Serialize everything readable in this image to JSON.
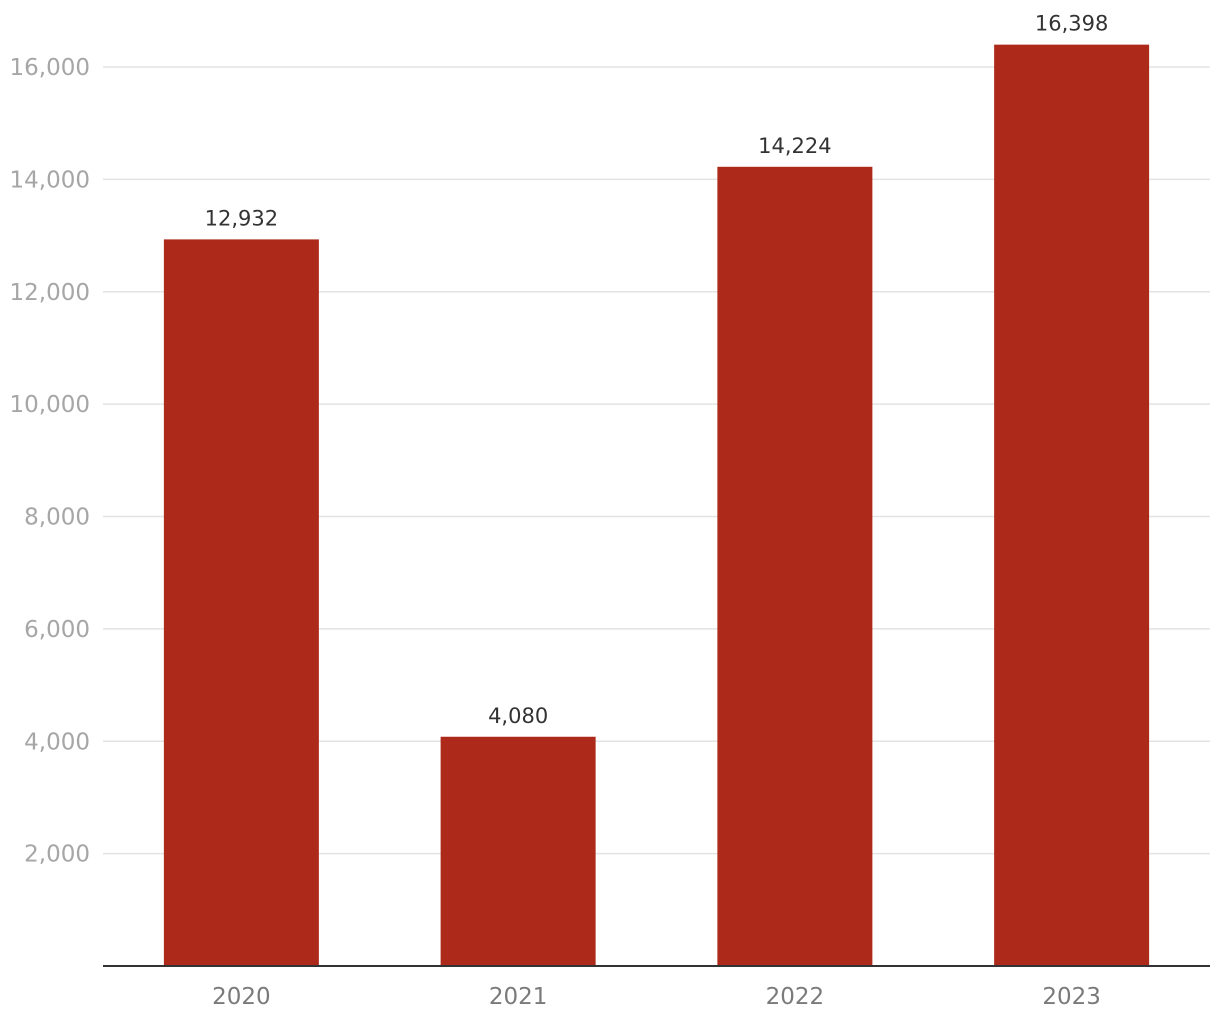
{
  "chart_data": {
    "type": "bar",
    "categories": [
      "2020",
      "2021",
      "2022",
      "2023"
    ],
    "values": [
      12932,
      4080,
      14224,
      16398
    ],
    "data_labels": [
      "12,932",
      "4,080",
      "14,224",
      "16,398"
    ],
    "yticks": [
      2000,
      4000,
      6000,
      8000,
      10000,
      12000,
      14000,
      16000
    ],
    "ytick_labels": [
      "2,000",
      "4,000",
      "6,000",
      "8,000",
      "10,000",
      "12,000",
      "14,000",
      "16,000"
    ],
    "ylim": [
      0,
      17000
    ],
    "grid": true,
    "title": "",
    "xlabel": "",
    "ylabel": "",
    "colors": {
      "bar": "#ad2a1a",
      "grid": "#e3e3e3",
      "axis": "#333333"
    }
  }
}
